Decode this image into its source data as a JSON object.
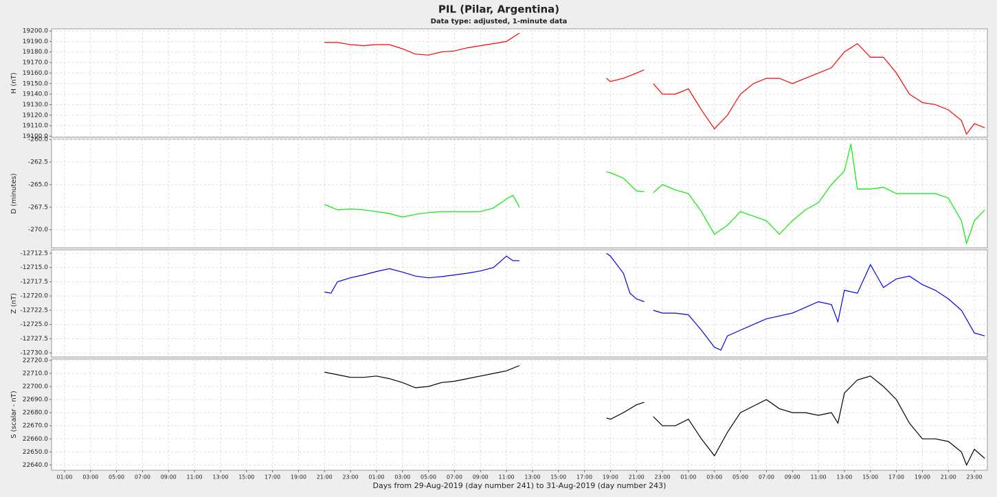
{
  "title": "PIL (Pilar, Argentina)",
  "subtitle": "Data type: adjusted, 1-minute data",
  "xaxis": {
    "label": "Days from 29-Aug-2019 (day number 241) to 31-Aug-2019 (day number 243)",
    "xlim": [
      0,
      72
    ],
    "xticks": [
      {
        "value": 1,
        "label": "01:00"
      },
      {
        "value": 3,
        "label": "03:00"
      },
      {
        "value": 5,
        "label": "05:00"
      },
      {
        "value": 7,
        "label": "07:00"
      },
      {
        "value": 9,
        "label": "09:00"
      },
      {
        "value": 11,
        "label": "11:00"
      },
      {
        "value": 13,
        "label": "13:00"
      },
      {
        "value": 15,
        "label": "15:00"
      },
      {
        "value": 17,
        "label": "17:00"
      },
      {
        "value": 19,
        "label": "19:00"
      },
      {
        "value": 21,
        "label": "21:00"
      },
      {
        "value": 23,
        "label": "23:00"
      },
      {
        "value": 25,
        "label": "01:00"
      },
      {
        "value": 27,
        "label": "03:00"
      },
      {
        "value": 29,
        "label": "05:00"
      },
      {
        "value": 31,
        "label": "07:00"
      },
      {
        "value": 33,
        "label": "09:00"
      },
      {
        "value": 35,
        "label": "11:00"
      },
      {
        "value": 37,
        "label": "13:00"
      },
      {
        "value": 39,
        "label": "15:00"
      },
      {
        "value": 41,
        "label": "17:00"
      },
      {
        "value": 43,
        "label": "19:00"
      },
      {
        "value": 45,
        "label": "21:00"
      },
      {
        "value": 47,
        "label": "23:00"
      },
      {
        "value": 49,
        "label": "01:00"
      },
      {
        "value": 51,
        "label": "03:00"
      },
      {
        "value": 53,
        "label": "05:00"
      },
      {
        "value": 55,
        "label": "07:00"
      },
      {
        "value": 57,
        "label": "09:00"
      },
      {
        "value": 59,
        "label": "11:00"
      },
      {
        "value": 61,
        "label": "13:00"
      },
      {
        "value": 63,
        "label": "15:00"
      },
      {
        "value": 65,
        "label": "17:00"
      },
      {
        "value": 67,
        "label": "19:00"
      },
      {
        "value": 69,
        "label": "21:00"
      },
      {
        "value": 71,
        "label": "23:00"
      }
    ]
  },
  "chart_data": [
    {
      "type": "line",
      "y_label": "H (nT)",
      "color": "#ff0000",
      "grid": true,
      "ylim": [
        19099,
        19202
      ],
      "yticks": [
        {
          "value": 19100,
          "label": "19100.0"
        },
        {
          "value": 19110,
          "label": "19110.0"
        },
        {
          "value": 19120,
          "label": "19120.0"
        },
        {
          "value": 19130,
          "label": "19130.0"
        },
        {
          "value": 19140,
          "label": "19140.0"
        },
        {
          "value": 19150,
          "label": "19150.0"
        },
        {
          "value": 19160,
          "label": "19160.0"
        },
        {
          "value": 19170,
          "label": "19170.0"
        },
        {
          "value": 19180,
          "label": "19180.0"
        },
        {
          "value": 19190,
          "label": "19190.0"
        },
        {
          "value": 19200,
          "label": "19200.0"
        }
      ],
      "x": [
        21,
        22,
        23,
        24,
        25,
        26,
        27,
        28,
        29,
        30,
        31,
        32,
        33,
        34,
        35,
        36,
        39,
        42.7,
        43,
        44,
        45,
        45.6,
        45.95,
        46.3,
        47,
        48,
        49,
        50,
        51,
        52,
        53,
        54,
        55,
        56,
        57,
        58,
        59,
        60,
        61,
        62,
        63,
        64,
        65,
        66,
        67,
        68,
        69,
        70,
        70.4,
        71,
        71.8
      ],
      "values": [
        19189,
        19189,
        19187,
        19186,
        19187,
        19187,
        19183,
        19178,
        19177,
        19180,
        19181,
        19184,
        19186,
        19188,
        19190,
        19198,
        null,
        19155,
        19152,
        19155,
        19160,
        19163,
        null,
        19150,
        19140,
        19140,
        19145,
        19125,
        19107,
        19120,
        19140,
        19150,
        19155,
        19155,
        19150,
        19155,
        19160,
        19165,
        19180,
        19188,
        19175,
        19175,
        19160,
        19140,
        19132,
        19130,
        19125,
        19115,
        19102,
        19112,
        19108
      ]
    },
    {
      "type": "line",
      "y_label": "D (minutes)",
      "color": "#00ee00",
      "grid": true,
      "ylim": [
        -272,
        -260
      ],
      "yticks": [
        {
          "value": -260,
          "label": "-260.0"
        },
        {
          "value": -262.5,
          "label": "-262.5"
        },
        {
          "value": -265,
          "label": "-265.0"
        },
        {
          "value": -267.5,
          "label": "-267.5"
        },
        {
          "value": -270,
          "label": "-270.0"
        }
      ],
      "x": [
        21,
        22,
        23,
        24,
        25,
        26,
        27,
        28,
        29,
        30,
        31,
        32,
        33,
        34,
        35,
        35.5,
        36,
        39,
        42.7,
        43,
        44,
        45,
        45.6,
        45.95,
        46.3,
        47,
        48,
        49,
        50,
        51,
        52,
        53,
        54,
        55,
        56,
        57,
        58,
        59,
        60,
        61,
        61.5,
        62,
        63,
        64,
        65,
        66,
        67,
        68,
        69,
        70,
        70.4,
        71,
        71.8
      ],
      "values": [
        -267.2,
        -267.8,
        -267.7,
        -267.8,
        -268,
        -268.2,
        -268.6,
        -268.3,
        -268.1,
        -268,
        -268,
        -268,
        -268,
        -267.6,
        -266.6,
        -266.2,
        -267.5,
        null,
        -263.6,
        -263.7,
        -264.3,
        -265.7,
        -265.8,
        null,
        -265.9,
        -265,
        -265.6,
        -266,
        -268,
        -270.5,
        -269.5,
        -268,
        -268.5,
        -269,
        -270.5,
        -269,
        -267.8,
        -267,
        -265,
        -263.5,
        -260.5,
        -265.5,
        -265.5,
        -265.3,
        -266,
        -266,
        -266,
        -266,
        -266.5,
        -269,
        -271.5,
        -269,
        -267.8
      ]
    },
    {
      "type": "line",
      "y_label": "Z (nT)",
      "color": "#0000ee",
      "grid": true,
      "ylim": [
        -12730.7,
        -12711.9
      ],
      "yticks": [
        {
          "value": -12712.5,
          "label": "-12712.5"
        },
        {
          "value": -12715,
          "label": "-12715.0"
        },
        {
          "value": -12717.5,
          "label": "-12717.5"
        },
        {
          "value": -12720,
          "label": "-12720.0"
        },
        {
          "value": -12722.5,
          "label": "-12722.5"
        },
        {
          "value": -12725,
          "label": "-12725.0"
        },
        {
          "value": -12727.5,
          "label": "-12727.5"
        },
        {
          "value": -12730,
          "label": "-12730.0"
        }
      ],
      "x": [
        21,
        21.5,
        22,
        23,
        24,
        25,
        26,
        27,
        28,
        29,
        30,
        31,
        32,
        33,
        34,
        35,
        35.5,
        36,
        39,
        42.7,
        43,
        44,
        44.5,
        45,
        45.6,
        45.95,
        46.3,
        47,
        48,
        49,
        50,
        51,
        51.5,
        52,
        53,
        54,
        55,
        56,
        57,
        58,
        59,
        60,
        60.5,
        61,
        62,
        63,
        64,
        65,
        66,
        67,
        68,
        69,
        70,
        71,
        71.8
      ],
      "values": [
        -12719.3,
        -12719.5,
        -12717.5,
        -12716.8,
        -12716.3,
        -12715.7,
        -12715.2,
        -12715.8,
        -12716.5,
        -12716.8,
        -12716.6,
        -12716.3,
        -12716,
        -12715.6,
        -12715,
        -12713,
        -12713.8,
        -12713.8,
        null,
        -12712.5,
        -12713,
        -12716,
        -12719.5,
        -12720.5,
        -12721,
        null,
        -12722.5,
        -12723,
        -12723,
        -12723.3,
        -12726,
        -12729,
        -12729.5,
        -12727,
        -12726,
        -12725,
        -12724,
        -12723.5,
        -12723,
        -12722,
        -12721,
        -12721.5,
        -12724.5,
        -12719,
        -12719.5,
        -12714.5,
        -12718.5,
        -12717,
        -12716.5,
        -12718,
        -12719,
        -12720.5,
        -12722.5,
        -12726.5,
        -12727
      ]
    },
    {
      "type": "line",
      "y_label": "S (scalar - nT)",
      "color": "#000000",
      "grid": true,
      "ylim": [
        22636,
        22721
      ],
      "yticks": [
        {
          "value": 22640,
          "label": "22640.0"
        },
        {
          "value": 22650,
          "label": "22650.0"
        },
        {
          "value": 22660,
          "label": "22660.0"
        },
        {
          "value": 22670,
          "label": "22670.0"
        },
        {
          "value": 22680,
          "label": "22680.0"
        },
        {
          "value": 22690,
          "label": "22690.0"
        },
        {
          "value": 22700,
          "label": "22700.0"
        },
        {
          "value": 22710,
          "label": "22710.0"
        },
        {
          "value": 22720,
          "label": "22720.0"
        }
      ],
      "x": [
        21,
        22,
        23,
        24,
        25,
        26,
        27,
        28,
        29,
        30,
        31,
        32,
        33,
        34,
        35,
        36,
        39,
        42.7,
        43,
        44,
        45,
        45.6,
        45.95,
        46.3,
        47,
        48,
        49,
        50,
        51,
        52,
        53,
        54,
        55,
        56,
        57,
        58,
        59,
        60,
        60.5,
        61,
        62,
        63,
        64,
        65,
        66,
        67,
        68,
        69,
        70,
        70.4,
        71,
        71.8
      ],
      "values": [
        22711,
        22709,
        22707,
        22707,
        22708,
        22706,
        22703,
        22699,
        22700,
        22703,
        22704,
        22706,
        22708,
        22710,
        22712,
        22716,
        null,
        22676,
        22675,
        22680,
        22686,
        22688,
        null,
        22677,
        22670,
        22670,
        22675,
        22660,
        22647,
        22665,
        22680,
        22685,
        22690,
        22683,
        22680,
        22680,
        22678,
        22680,
        22672,
        22695,
        22705,
        22708,
        22700,
        22690,
        22672,
        22660,
        22660,
        22658,
        22650,
        22640,
        22652,
        22645
      ]
    }
  ]
}
